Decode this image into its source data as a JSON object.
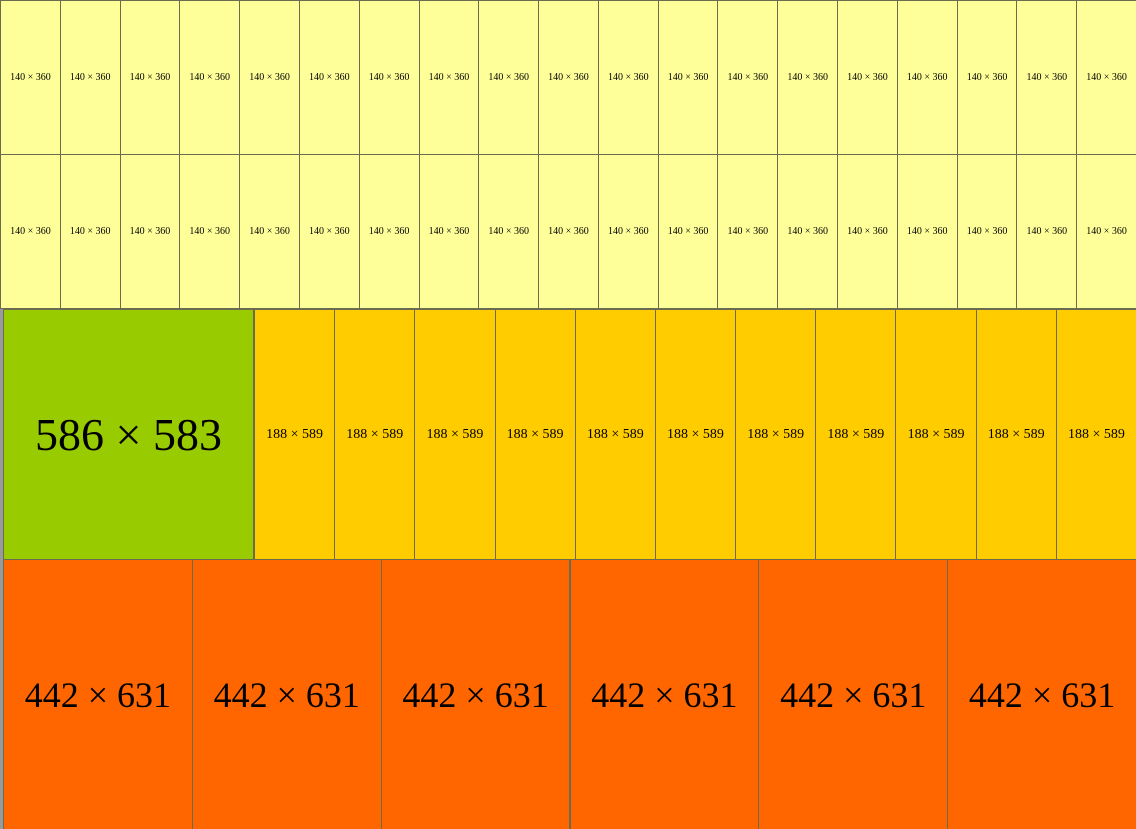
{
  "top_rows": [
    [
      "140 × 360",
      "140 × 360",
      "140 × 360",
      "140 × 360",
      "140 × 360",
      "140 × 360",
      "140 × 360",
      "140 × 360",
      "140 × 360",
      "140 × 360",
      "140 × 360",
      "140 × 360",
      "140 × 360",
      "140 × 360",
      "140 × 360",
      "140 × 360",
      "140 × 360",
      "140 × 360",
      "140 × 360"
    ],
    [
      "140 × 360",
      "140 × 360",
      "140 × 360",
      "140 × 360",
      "140 × 360",
      "140 × 360",
      "140 × 360",
      "140 × 360",
      "140 × 360",
      "140 × 360",
      "140 × 360",
      "140 × 360",
      "140 × 360",
      "140 × 360",
      "140 × 360",
      "140 × 360",
      "140 × 360",
      "140 × 360",
      "140 × 360"
    ]
  ],
  "middle": {
    "large": "586 × 583",
    "tiles": [
      "188 × 589",
      "188 × 589",
      "188 × 589",
      "188 × 589",
      "188 × 589",
      "188 × 589",
      "188 × 589",
      "188 × 589",
      "188 × 589",
      "188 × 589",
      "188 × 589"
    ]
  },
  "bottom": [
    "442 × 631",
    "442 × 631",
    "442 × 631",
    "442 × 631",
    "442 × 631",
    "442 × 631"
  ]
}
